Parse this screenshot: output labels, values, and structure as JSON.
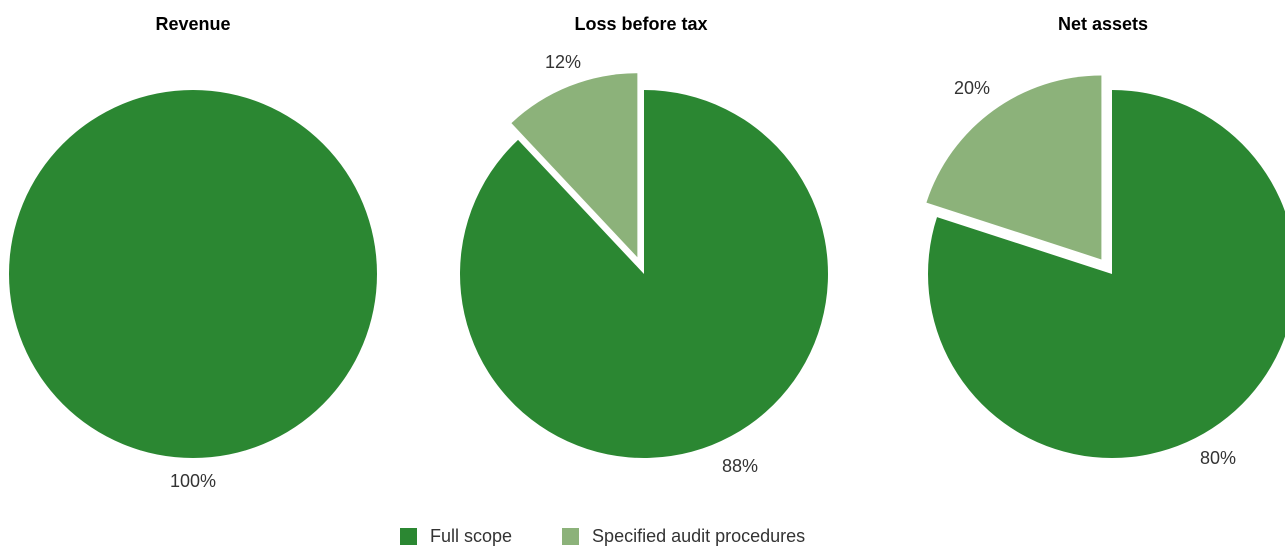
{
  "chart_data": [
    {
      "type": "pie",
      "title": "Revenue",
      "slices": [
        {
          "category": "Full scope",
          "value": 100,
          "label": "100%"
        }
      ]
    },
    {
      "type": "pie",
      "title": "Loss before tax",
      "slices": [
        {
          "category": "Full scope",
          "value": 88,
          "label": "88%"
        },
        {
          "category": "Specified audit procedures",
          "value": 12,
          "label": "12%"
        }
      ]
    },
    {
      "type": "pie",
      "title": "Net assets",
      "slices": [
        {
          "category": "Full scope",
          "value": 80,
          "label": "80%"
        },
        {
          "category": "Specified audit procedures",
          "value": 20,
          "label": "20%"
        }
      ]
    }
  ],
  "legend": [
    {
      "label": "Full scope",
      "color": "#2b8732"
    },
    {
      "label": "Specified audit procedures",
      "color": "#8cb27a"
    }
  ]
}
